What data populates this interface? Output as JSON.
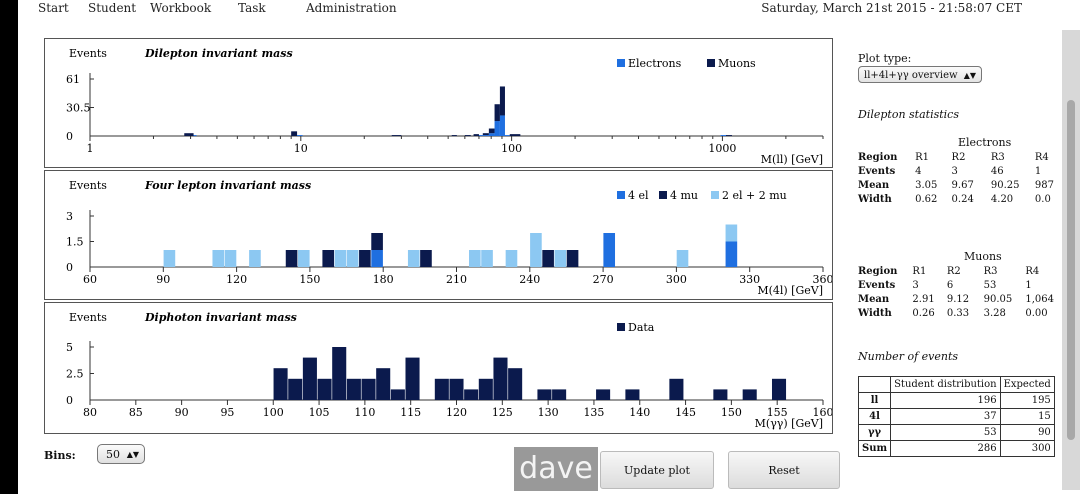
{
  "nav": {
    "items": [
      "Start",
      "Student",
      "Workbook",
      "Task",
      "Administration"
    ],
    "datetime": "Saturday, March 21st 2015 - 21:58:07 CET"
  },
  "side": {
    "plot_type_label": "Plot type:",
    "plot_type_value": "ll+4l+γγ overview",
    "dilepton_stats_title": "Dilepton statistics",
    "electrons": {
      "title": "Electrons",
      "headers": [
        "Region",
        "R1",
        "R2",
        "R3",
        "R4"
      ],
      "rows": [
        {
          "label": "Events",
          "values": [
            "4",
            "3",
            "46",
            "1"
          ]
        },
        {
          "label": "Mean",
          "values": [
            "3.05",
            "9.67",
            "90.25",
            "987"
          ]
        },
        {
          "label": "Width",
          "values": [
            "0.62",
            "0.24",
            "4.20",
            "0.0"
          ]
        }
      ]
    },
    "muons": {
      "title": "Muons",
      "headers": [
        "Region",
        "R1",
        "R2",
        "R3",
        "R4"
      ],
      "rows": [
        {
          "label": "Events",
          "values": [
            "3",
            "6",
            "53",
            "1"
          ]
        },
        {
          "label": "Mean",
          "values": [
            "2.91",
            "9.12",
            "90.05",
            "1,064"
          ]
        },
        {
          "label": "Width",
          "values": [
            "0.26",
            "0.33",
            "3.28",
            "0.00"
          ]
        }
      ]
    },
    "number_of_events_title": "Number of events",
    "events_table": {
      "headers": [
        "",
        "Student distribution",
        "Expected"
      ],
      "rows": [
        {
          "label": "ll",
          "student": "196",
          "expected": "195"
        },
        {
          "label": "4l",
          "student": "37",
          "expected": "15"
        },
        {
          "label": "γγ",
          "student": "53",
          "expected": "90"
        },
        {
          "label": "Sum",
          "student": "286",
          "expected": "300"
        }
      ]
    }
  },
  "controls": {
    "bins_label": "Bins:",
    "bins_value": "50",
    "watermark": "dave",
    "update_label": "Update plot",
    "reset_label": "Reset"
  },
  "chart_data": [
    {
      "type": "bar",
      "title": "Dilepton invariant mass",
      "ylabel": "Events",
      "xlabel": "M(ll) [GeV]",
      "xscale": "log",
      "xlim": [
        1,
        3000
      ],
      "ylim": [
        0,
        61
      ],
      "yticks": [
        0,
        30.5,
        61
      ],
      "ytick_labels": [
        "0",
        "30.5",
        "61"
      ],
      "xticks": [
        1,
        10,
        100,
        1000
      ],
      "xtick_labels": [
        "1",
        "10",
        "100",
        "1000"
      ],
      "legend": "top-right",
      "stacked": true,
      "series": [
        {
          "name": "Electrons",
          "color": "#1f6fe0",
          "bins": [
            [
              3.0,
              3.2,
              1
            ],
            [
              9.5,
              10.2,
              1
            ],
            [
              68,
              73,
              1
            ],
            [
              73,
              78,
              1
            ],
            [
              78,
              83,
              3
            ],
            [
              83,
              88,
              16
            ],
            [
              88,
              93,
              22
            ],
            [
              93,
              98,
              1
            ],
            [
              980,
              1050,
              1
            ]
          ]
        },
        {
          "name": "Muons",
          "color": "#0b1a4d",
          "bins": [
            [
              2.8,
              3.1,
              3
            ],
            [
              9.0,
              9.6,
              5
            ],
            [
              27,
              30,
              1
            ],
            [
              52,
              55,
              1
            ],
            [
              60,
              64,
              1
            ],
            [
              66,
              70,
              2
            ],
            [
              73,
              78,
              2
            ],
            [
              78,
              83,
              5
            ],
            [
              83,
              88,
              18
            ],
            [
              88,
              93,
              31
            ],
            [
              98,
              110,
              2
            ],
            [
              1040,
              1110,
              1
            ]
          ]
        }
      ]
    },
    {
      "type": "bar",
      "title": "Four lepton invariant mass",
      "ylabel": "Events",
      "xlabel": "M(4l) [GeV]",
      "xlim": [
        60,
        360
      ],
      "ylim": [
        0,
        3
      ],
      "yticks": [
        0,
        1.5,
        3
      ],
      "ytick_labels": [
        "0",
        "1.5",
        "3"
      ],
      "xticks": [
        60,
        90,
        120,
        150,
        180,
        210,
        240,
        270,
        300,
        330,
        360
      ],
      "xtick_labels": [
        "60",
        "90",
        "120",
        "150",
        "180",
        "210",
        "240",
        "270",
        "300",
        "330",
        "360"
      ],
      "legend": "top-right",
      "stacked": true,
      "bin_width": 5,
      "series": [
        {
          "name": "4 el",
          "color": "#1f6fe0",
          "bins": [
            [
              175,
              1
            ],
            [
              270,
              2
            ],
            [
              320,
              1.5
            ]
          ]
        },
        {
          "name": "4 mu",
          "color": "#0b1a4d",
          "bins": [
            [
              140,
              1
            ],
            [
              155,
              1
            ],
            [
              170,
              1
            ],
            [
              175,
              1
            ],
            [
              195,
              1
            ],
            [
              245,
              1
            ],
            [
              255,
              1
            ]
          ]
        },
        {
          "name": "2 el + 2 mu",
          "color": "#8cc8f2",
          "bins": [
            [
              90,
              1
            ],
            [
              110,
              1
            ],
            [
              115,
              1
            ],
            [
              125,
              1
            ],
            [
              145,
              1
            ],
            [
              160,
              1
            ],
            [
              165,
              1
            ],
            [
              190,
              1
            ],
            [
              215,
              1
            ],
            [
              220,
              1
            ],
            [
              230,
              1
            ],
            [
              240,
              2
            ],
            [
              250,
              1
            ],
            [
              300,
              1
            ],
            [
              320,
              1
            ]
          ]
        }
      ]
    },
    {
      "type": "bar",
      "title": "Diphoton invariant mass",
      "ylabel": "Events",
      "xlabel": "M(γγ) [GeV]",
      "xlim": [
        80,
        160
      ],
      "ylim": [
        0,
        5
      ],
      "yticks": [
        0,
        2.5,
        5
      ],
      "ytick_labels": [
        "0",
        "2.5",
        "5"
      ],
      "xticks": [
        80,
        85,
        90,
        95,
        100,
        105,
        110,
        115,
        120,
        125,
        130,
        135,
        140,
        145,
        150,
        155,
        160
      ],
      "xtick_labels": [
        "80",
        "85",
        "90",
        "95",
        "100",
        "105",
        "110",
        "115",
        "120",
        "125",
        "130",
        "135",
        "140",
        "145",
        "150",
        "155",
        "160"
      ],
      "legend": "top-right",
      "stacked": false,
      "bin_width": 1.6,
      "series": [
        {
          "name": "Data",
          "color": "#0b1a4d",
          "bins": [
            [
              100,
              3
            ],
            [
              101.6,
              2
            ],
            [
              103.2,
              4
            ],
            [
              104.8,
              2
            ],
            [
              106.4,
              5
            ],
            [
              108,
              2
            ],
            [
              109.6,
              2
            ],
            [
              111.2,
              3
            ],
            [
              112.8,
              1
            ],
            [
              114.4,
              4
            ],
            [
              117.6,
              2
            ],
            [
              119.2,
              2
            ],
            [
              120.8,
              1
            ],
            [
              122.4,
              2
            ],
            [
              124,
              4
            ],
            [
              125.6,
              3
            ],
            [
              128.8,
              1
            ],
            [
              130.4,
              1
            ],
            [
              135.2,
              1
            ],
            [
              138.4,
              1
            ],
            [
              143.2,
              2
            ],
            [
              148,
              1
            ],
            [
              151.2,
              1
            ],
            [
              154.4,
              2
            ]
          ]
        }
      ]
    }
  ]
}
